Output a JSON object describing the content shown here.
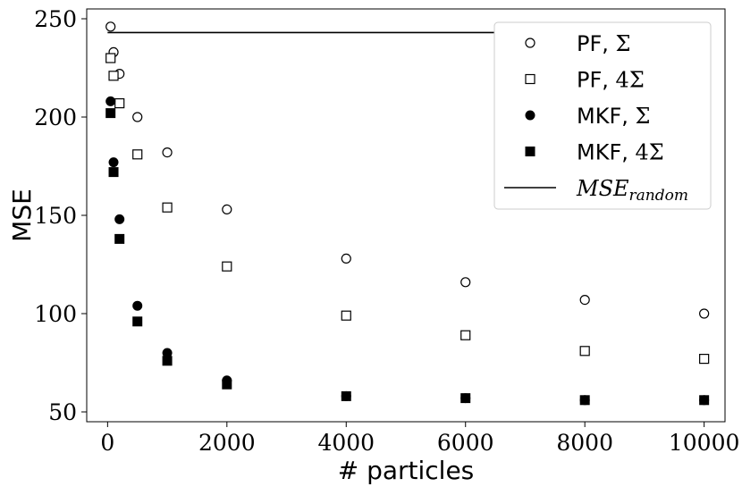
{
  "chart_data": {
    "type": "scatter",
    "title": "",
    "xlabel": "# particles",
    "ylabel": "MSE",
    "xlim": [
      -350,
      10350
    ],
    "ylim": [
      45,
      255
    ],
    "xticks": [
      0,
      2000,
      4000,
      6000,
      8000,
      10000
    ],
    "xtick_labels": [
      "0",
      "2000",
      "4000",
      "6000",
      "8000",
      "10000"
    ],
    "yticks": [
      50,
      100,
      150,
      200,
      250
    ],
    "ytick_labels": [
      "50",
      "100",
      "150",
      "200",
      "250"
    ],
    "grid": false,
    "legend_position": "top-right",
    "series": [
      {
        "name_prefix": "PF, ",
        "name_math": "Σ",
        "marker": "open-circle",
        "x": [
          50,
          100,
          200,
          500,
          1000,
          2000,
          4000,
          6000,
          8000,
          10000
        ],
        "y": [
          246,
          233,
          222,
          200,
          182,
          153,
          128,
          116,
          107,
          100
        ]
      },
      {
        "name_prefix": "PF, ",
        "name_math": "4Σ",
        "marker": "open-square",
        "x": [
          50,
          100,
          200,
          500,
          1000,
          2000,
          4000,
          6000,
          8000,
          10000
        ],
        "y": [
          230,
          221,
          207,
          181,
          154,
          124,
          99,
          89,
          81,
          77
        ]
      },
      {
        "name_prefix": "MKF, ",
        "name_math": "Σ",
        "marker": "filled-circle",
        "x": [
          50,
          100,
          200,
          500,
          1000,
          2000,
          4000,
          6000,
          8000,
          10000
        ],
        "y": [
          208,
          177,
          148,
          104,
          80,
          66,
          58,
          57,
          56,
          56
        ]
      },
      {
        "name_prefix": "MKF, ",
        "name_math": "4Σ",
        "marker": "filled-square",
        "x": [
          50,
          100,
          200,
          500,
          1000,
          2000,
          4000,
          6000,
          8000,
          10000
        ],
        "y": [
          202,
          172,
          138,
          96,
          76,
          64,
          58,
          57,
          56,
          56
        ]
      },
      {
        "name_main": "MSE",
        "name_sub": "random",
        "marker": "line",
        "type": "hline",
        "x": [
          0,
          10000
        ],
        "y": [
          243,
          243
        ]
      }
    ]
  }
}
